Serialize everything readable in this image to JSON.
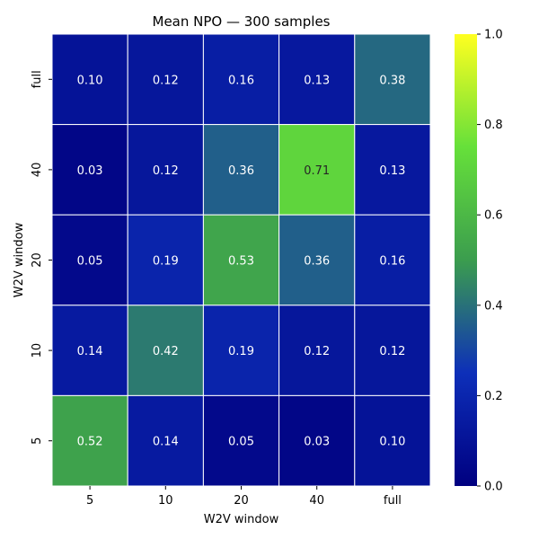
{
  "chart_data": {
    "type": "heatmap",
    "title": "Mean NPO — 300 samples",
    "xlabel": "W2V window",
    "ylabel": "W2V window",
    "x_categories": [
      "5",
      "10",
      "20",
      "40",
      "full"
    ],
    "y_categories": [
      "full",
      "40",
      "20",
      "10",
      "5"
    ],
    "values": [
      [
        0.1,
        0.12,
        0.16,
        0.13,
        0.38
      ],
      [
        0.03,
        0.12,
        0.36,
        0.71,
        0.13
      ],
      [
        0.05,
        0.19,
        0.53,
        0.36,
        0.16
      ],
      [
        0.14,
        0.42,
        0.19,
        0.12,
        0.12
      ],
      [
        0.52,
        0.14,
        0.05,
        0.03,
        0.1
      ]
    ],
    "colorbar": {
      "range": [
        0.0,
        1.0
      ],
      "ticks": [
        "0.0",
        "0.2",
        "0.4",
        "0.6",
        "0.8",
        "1.0"
      ]
    },
    "colormap": [
      "#000080",
      "#0d2fb9",
      "#3b9d4e",
      "#66e03a",
      "#ffff20"
    ]
  }
}
